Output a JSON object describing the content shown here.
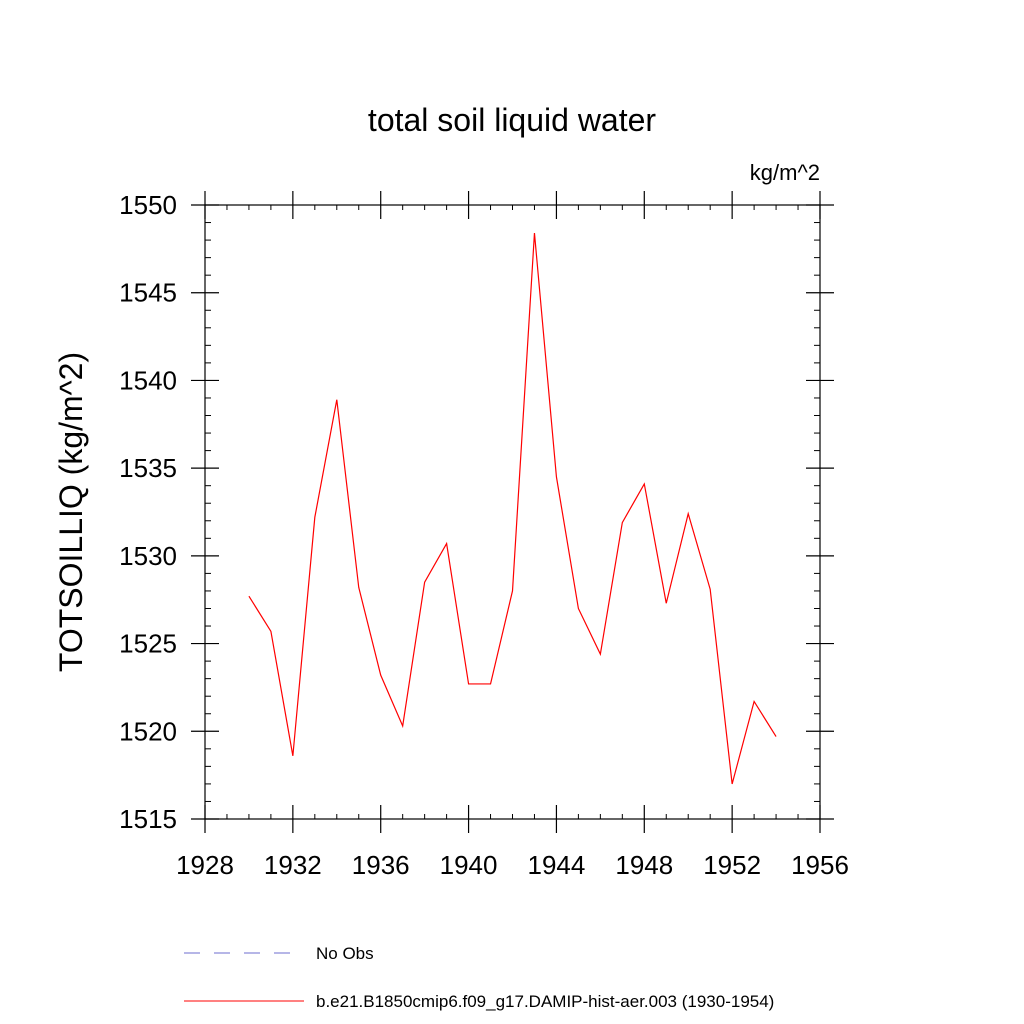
{
  "chart_data": {
    "type": "line",
    "title": "total soil liquid water",
    "units_label": "kg/m^2",
    "ylabel": "TOTSOILLIQ  (kg/m^2)",
    "xlabel": "",
    "xlim": [
      1928,
      1956
    ],
    "ylim": [
      1515,
      1550
    ],
    "x_ticks": [
      1928,
      1932,
      1936,
      1940,
      1944,
      1948,
      1952,
      1956
    ],
    "y_ticks": [
      1515,
      1520,
      1525,
      1530,
      1535,
      1540,
      1545,
      1550
    ],
    "grid": false,
    "legend_position": "bottom",
    "series": [
      {
        "name": "b.e21.B1850cmip6.f09_g17.DAMIP-hist-aer.003 (1930-1954)",
        "color": "#ff0000",
        "style": "solid",
        "x": [
          1930,
          1931,
          1932,
          1933,
          1934,
          1935,
          1936,
          1937,
          1938,
          1939,
          1940,
          1941,
          1942,
          1943,
          1944,
          1945,
          1946,
          1947,
          1948,
          1949,
          1950,
          1951,
          1952,
          1953,
          1954
        ],
        "y": [
          1527.7,
          1525.7,
          1518.6,
          1532.2,
          1538.9,
          1528.2,
          1523.2,
          1520.3,
          1528.5,
          1530.7,
          1522.7,
          1522.7,
          1528.0,
          1548.4,
          1534.5,
          1527.0,
          1524.4,
          1531.9,
          1534.1,
          1527.3,
          1532.4,
          1528.1,
          1517.0,
          1521.7,
          1519.7
        ]
      }
    ],
    "legend": [
      {
        "label": "No Obs",
        "color": "#6c6ccf",
        "style": "dashed"
      },
      {
        "label": "b.e21.B1850cmip6.f09_g17.DAMIP-hist-aer.003 (1930-1954)",
        "color": "#ff0000",
        "style": "solid"
      }
    ]
  }
}
